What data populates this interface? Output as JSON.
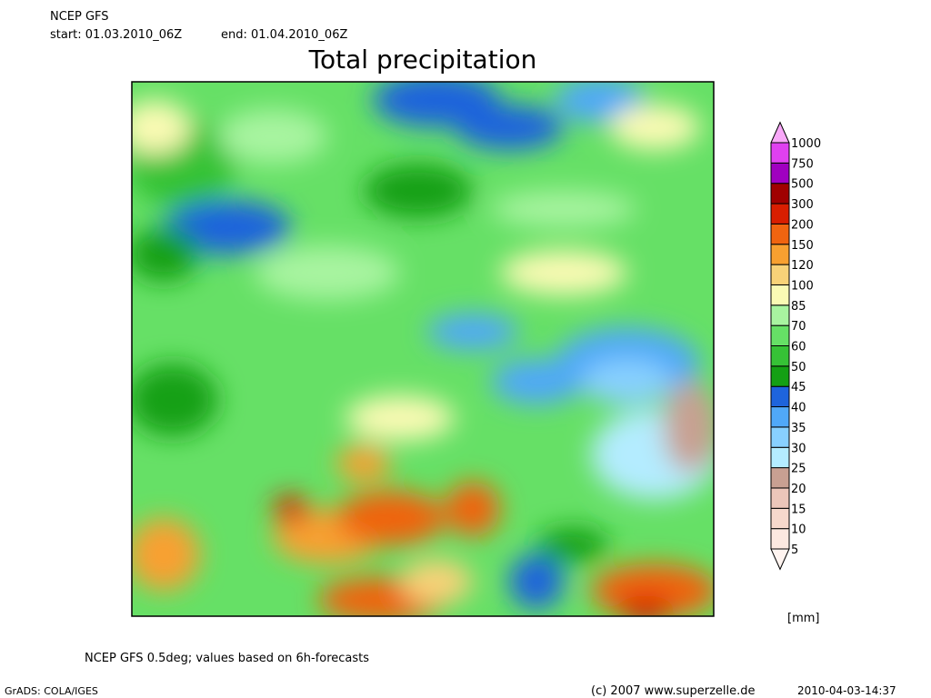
{
  "header": {
    "model": "NCEP GFS",
    "start": "start: 01.03.2010_06Z",
    "end": "end: 01.04.2010_06Z"
  },
  "title": "Total precipitation",
  "legend": {
    "levels": [
      "5",
      "10",
      "15",
      "20",
      "25",
      "30",
      "35",
      "40",
      "45",
      "50",
      "60",
      "70",
      "85",
      "100",
      "120",
      "150",
      "200",
      "300",
      "500",
      "750",
      "1000"
    ],
    "colors": [
      "#fff4f0",
      "#fce8e0",
      "#f6d8cc",
      "#ecc6ba",
      "#c8a092",
      "#b4ecff",
      "#88d0ff",
      "#50a8f8",
      "#1e64dc",
      "#14a014",
      "#36c236",
      "#66e066",
      "#a8f4a0",
      "#fafab4",
      "#f8d278",
      "#f8a030",
      "#f06410",
      "#d81e00",
      "#a00000",
      "#a000c0",
      "#e040f0",
      "#f8a8f8",
      "#fcecfc"
    ],
    "unit": "[mm]"
  },
  "footer": {
    "note": "NCEP GFS 0.5deg; values based on 6h-forecasts",
    "software": "GrADS: COLA/IGES",
    "copyright": "(c) 2007 www.superzelle.de",
    "timestamp": "2010-04-03-14:37"
  }
}
